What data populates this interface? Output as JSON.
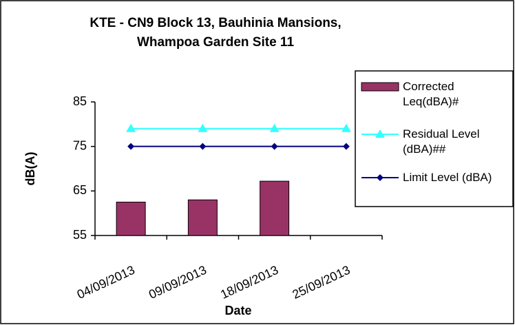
{
  "chart_data": {
    "type": "bar",
    "title": "KTE - CN9 Block 13, Bauhinia Mansions, Whampoa Garden Site 11",
    "x_label": "Date",
    "y_label": "dB(A)",
    "categories": [
      "04/09/2013",
      "09/09/2013",
      "18/09/2013",
      "25/09/2013"
    ],
    "series": [
      {
        "name": "Corrected Leq(dBA)#",
        "type": "bar",
        "color": "#993366",
        "values": [
          62.5,
          63,
          67.2,
          null
        ]
      },
      {
        "name": "Residual Level (dBA)##",
        "type": "line",
        "marker": "triangle",
        "color": "#33ffff",
        "values": [
          79,
          79,
          79,
          79
        ]
      },
      {
        "name": "Limit Level (dBA)",
        "type": "line",
        "marker": "diamond",
        "color": "#000080",
        "values": [
          75,
          75,
          75,
          75
        ]
      }
    ],
    "ylim": [
      55,
      85
    ],
    "yticks": [
      55,
      65,
      75,
      85
    ],
    "grid": false,
    "legend": "right"
  }
}
